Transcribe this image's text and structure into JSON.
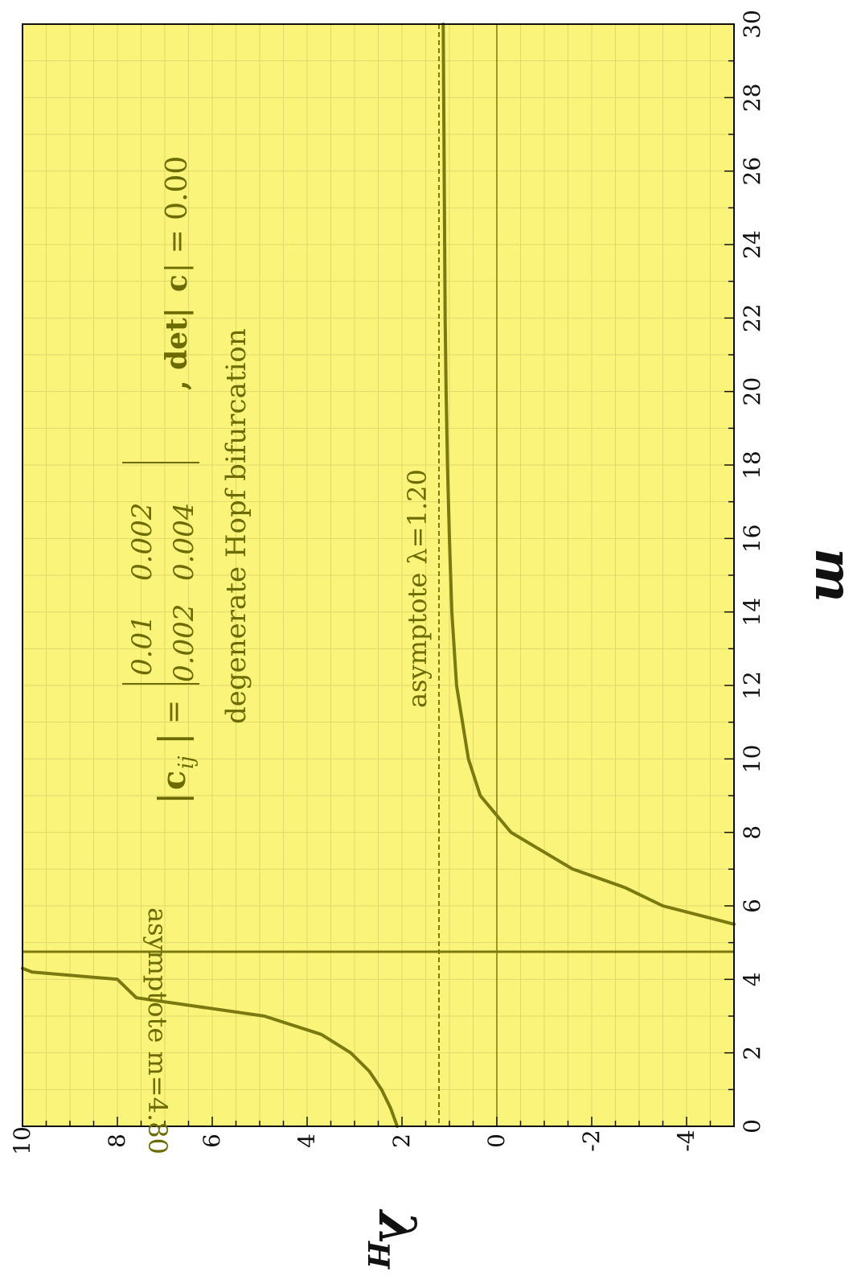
{
  "chart_data": {
    "type": "line",
    "rotation": "plot rotated 90 degrees clockwise (landscape figure on portrait page)",
    "x_axis": {
      "label": "m",
      "range": [
        0,
        30
      ],
      "ticks": [
        0,
        2,
        4,
        6,
        8,
        10,
        12,
        14,
        16,
        18,
        20,
        22,
        24,
        26,
        28,
        30
      ],
      "tick_labels": [
        "0",
        "2",
        "4",
        "6",
        "8",
        "10",
        "12",
        "14",
        "16",
        "18",
        "20",
        "22",
        "24",
        "26",
        "28",
        "30"
      ]
    },
    "y_axis": {
      "label": "λ",
      "label_subscript": "H",
      "range": [
        -5,
        10
      ],
      "ticks": [
        -4,
        -2,
        0,
        2,
        4,
        6,
        8,
        10
      ],
      "tick_labels": [
        "-4",
        "-2",
        "0",
        "2",
        "4",
        "6",
        "8",
        "10"
      ]
    },
    "grid": true,
    "colors": {
      "background": "#fbf47a",
      "grid": "#e0d96a",
      "curve": "#7a7a10",
      "text": "#6b6b00"
    },
    "series": [
      {
        "style": "solid",
        "x": [
          0,
          0.5,
          1,
          1.5,
          2,
          2.5,
          3,
          3.5,
          4,
          4.2,
          4.3,
          5.5,
          5.8,
          6,
          6.5,
          7,
          8,
          9,
          10,
          12,
          14,
          16,
          18,
          20,
          22,
          24,
          26,
          28,
          30
        ],
        "y": [
          2.1,
          2.24,
          2.43,
          2.69,
          3.08,
          3.7,
          4.9,
          7.6,
          8.0,
          9.8,
          10.0,
          -5.0,
          -4.1,
          -3.5,
          -2.7,
          -1.6,
          -0.3,
          0.35,
          0.6,
          0.85,
          0.95,
          1.0,
          1.04,
          1.07,
          1.09,
          1.1,
          1.11,
          1.12,
          1.13
        ]
      }
    ],
    "asymptotes": [
      {
        "orientation": "vertical",
        "x": 4.8,
        "style": "solid",
        "label": "asymptote m=4.80"
      },
      {
        "orientation": "horizontal",
        "y": 1.2,
        "style": "dashed",
        "label": "asymptote λ=1.20"
      }
    ],
    "annotations": {
      "matrix_lhs_bar_left": "|",
      "matrix_lhs_c": "c",
      "matrix_lhs_ij": "ij",
      "matrix_lhs_bar_right": "|",
      "matrix_equals": "=",
      "matrix": [
        [
          "0.01",
          "0.002"
        ],
        [
          "0.002",
          "0.004"
        ]
      ],
      "det_prefix": ", det|",
      "det_c": "c",
      "det_suffix": "| = 0.00",
      "hopf": "degenerate Hopf bifurcation"
    }
  }
}
